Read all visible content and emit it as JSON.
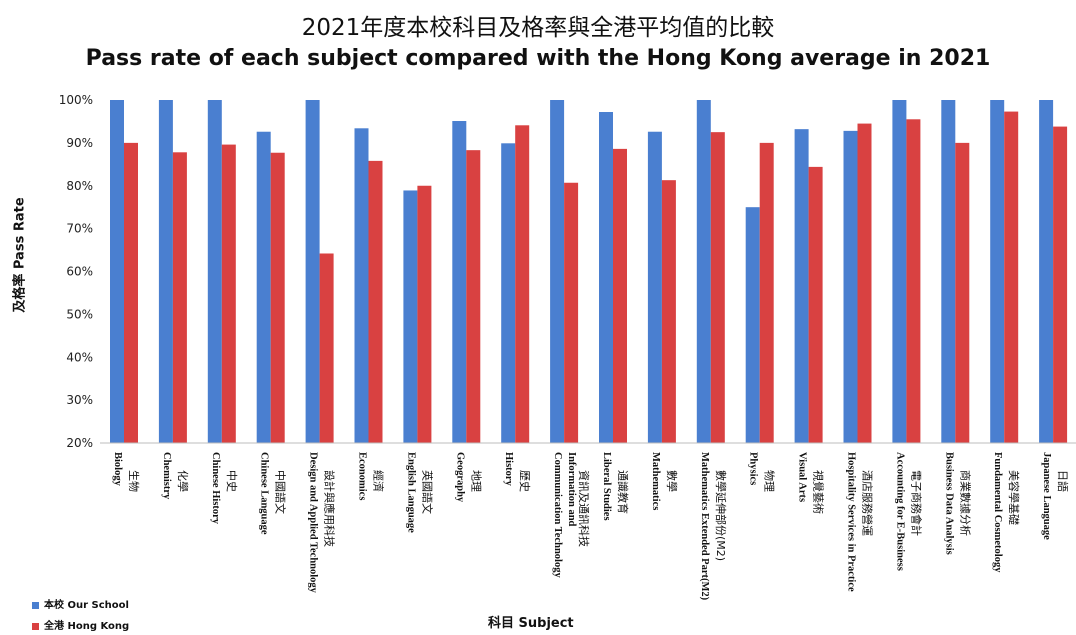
{
  "chart_data": {
    "type": "bar",
    "title": "2021年度本校科目及格率與全港平均值的比較",
    "subtitle": "Pass rate of each subject compared with the Hong Kong average in  2021",
    "xlabel": "科目 Subject",
    "ylabel": "及格率  Pass Rate",
    "ylim": [
      20,
      100
    ],
    "yticks": [
      "20%",
      "30%",
      "40%",
      "50%",
      "60%",
      "70%",
      "80%",
      "90%",
      "100%"
    ],
    "grid": false,
    "legend_position": "bottom-left",
    "categories": [
      {
        "en": "Biology",
        "zh": "生物"
      },
      {
        "en": "Chemistry",
        "zh": "化學"
      },
      {
        "en": "Chinese History",
        "zh": "中史"
      },
      {
        "en": "Chinese Language",
        "zh": "中國語文"
      },
      {
        "en": "Design and Applied Technology",
        "zh": "設計與應用科技"
      },
      {
        "en": "Economics",
        "zh": "經濟"
      },
      {
        "en": "English Language",
        "zh": "英國語文"
      },
      {
        "en": "Geography",
        "zh": "地理"
      },
      {
        "en": "History",
        "zh": "歷史"
      },
      {
        "en": "Information and Communication Technology",
        "zh": "資訊及通訊科技"
      },
      {
        "en": "Liberal Studies",
        "zh": "通識教育"
      },
      {
        "en": "Mathematics",
        "zh": "數學"
      },
      {
        "en": "Mathematics Extended Part(M2)",
        "zh": "數學延伸部份(M2)"
      },
      {
        "en": "Physics",
        "zh": "物理"
      },
      {
        "en": "Visual Arts",
        "zh": "視覺藝術"
      },
      {
        "en": "Hospitality Services in Practice",
        "zh": "酒店服務營運"
      },
      {
        "en": "Accounting for E-Business",
        "zh": "電子商務會計"
      },
      {
        "en": "Business Data Analysis",
        "zh": "商業數據分析"
      },
      {
        "en": "Fundamental Cosmetology",
        "zh": "美容學基礎"
      },
      {
        "en": "Japanese Language",
        "zh": "日語"
      }
    ],
    "series": [
      {
        "name": "本校 Our School",
        "color": "#4a7fd0",
        "values": [
          100,
          100,
          100,
          92.6,
          100,
          93.4,
          78.9,
          95.1,
          89.9,
          100,
          97.2,
          92.6,
          100,
          75.0,
          93.2,
          92.8,
          100,
          100,
          100,
          100
        ]
      },
      {
        "name": "全港 Hong Kong",
        "color": "#d94141",
        "values": [
          90.0,
          87.8,
          89.6,
          87.7,
          64.2,
          85.8,
          80.0,
          88.3,
          94.1,
          80.7,
          88.6,
          81.3,
          92.5,
          90.0,
          84.4,
          94.5,
          95.5,
          90.0,
          97.3,
          93.8
        ]
      }
    ]
  }
}
